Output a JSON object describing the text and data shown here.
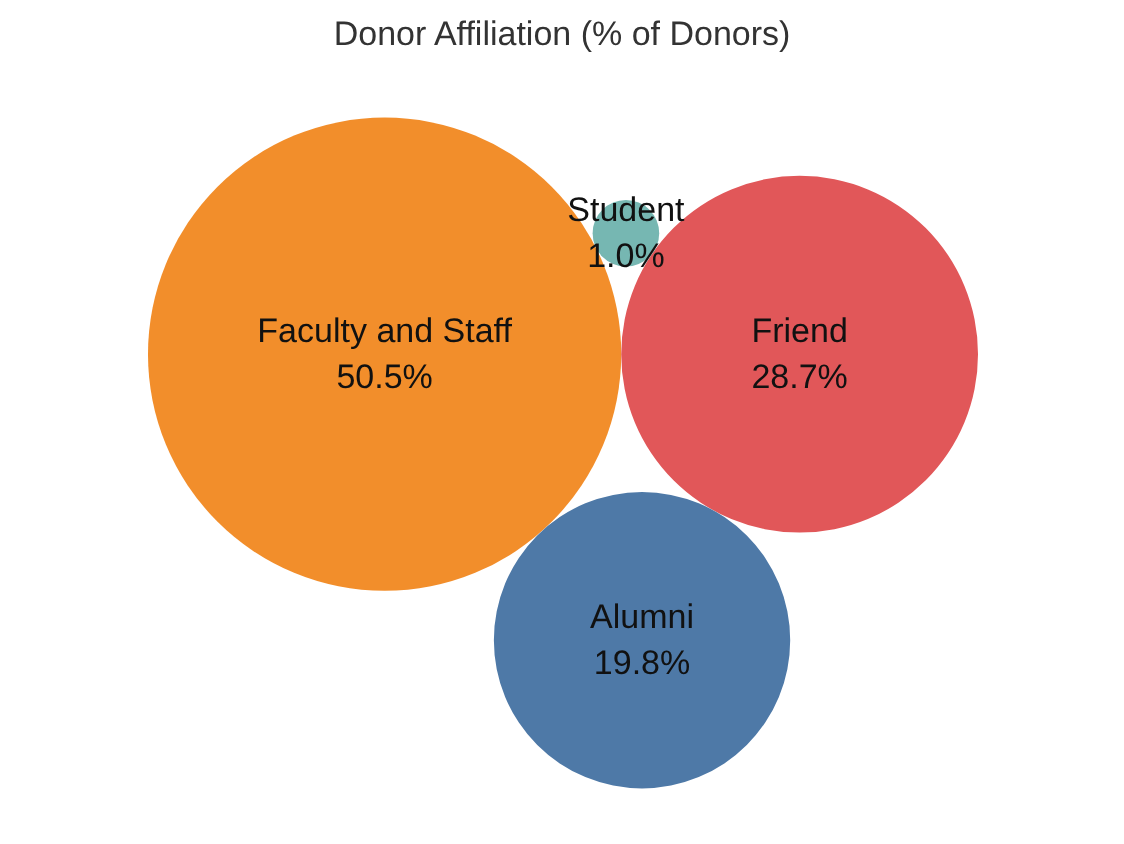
{
  "chart_data": {
    "type": "other",
    "title": "Donor Affiliation (% of Donors)",
    "categories": [
      "Faculty and Staff",
      "Friend",
      "Alumni",
      "Student"
    ],
    "values": [
      50.5,
      28.7,
      19.8,
      1.0
    ],
    "value_labels": [
      "50.5%",
      "28.7%",
      "19.8%",
      "1.0%"
    ],
    "colors": [
      "#f28e2b",
      "#e15759",
      "#4e79a7",
      "#76b7b2"
    ]
  }
}
